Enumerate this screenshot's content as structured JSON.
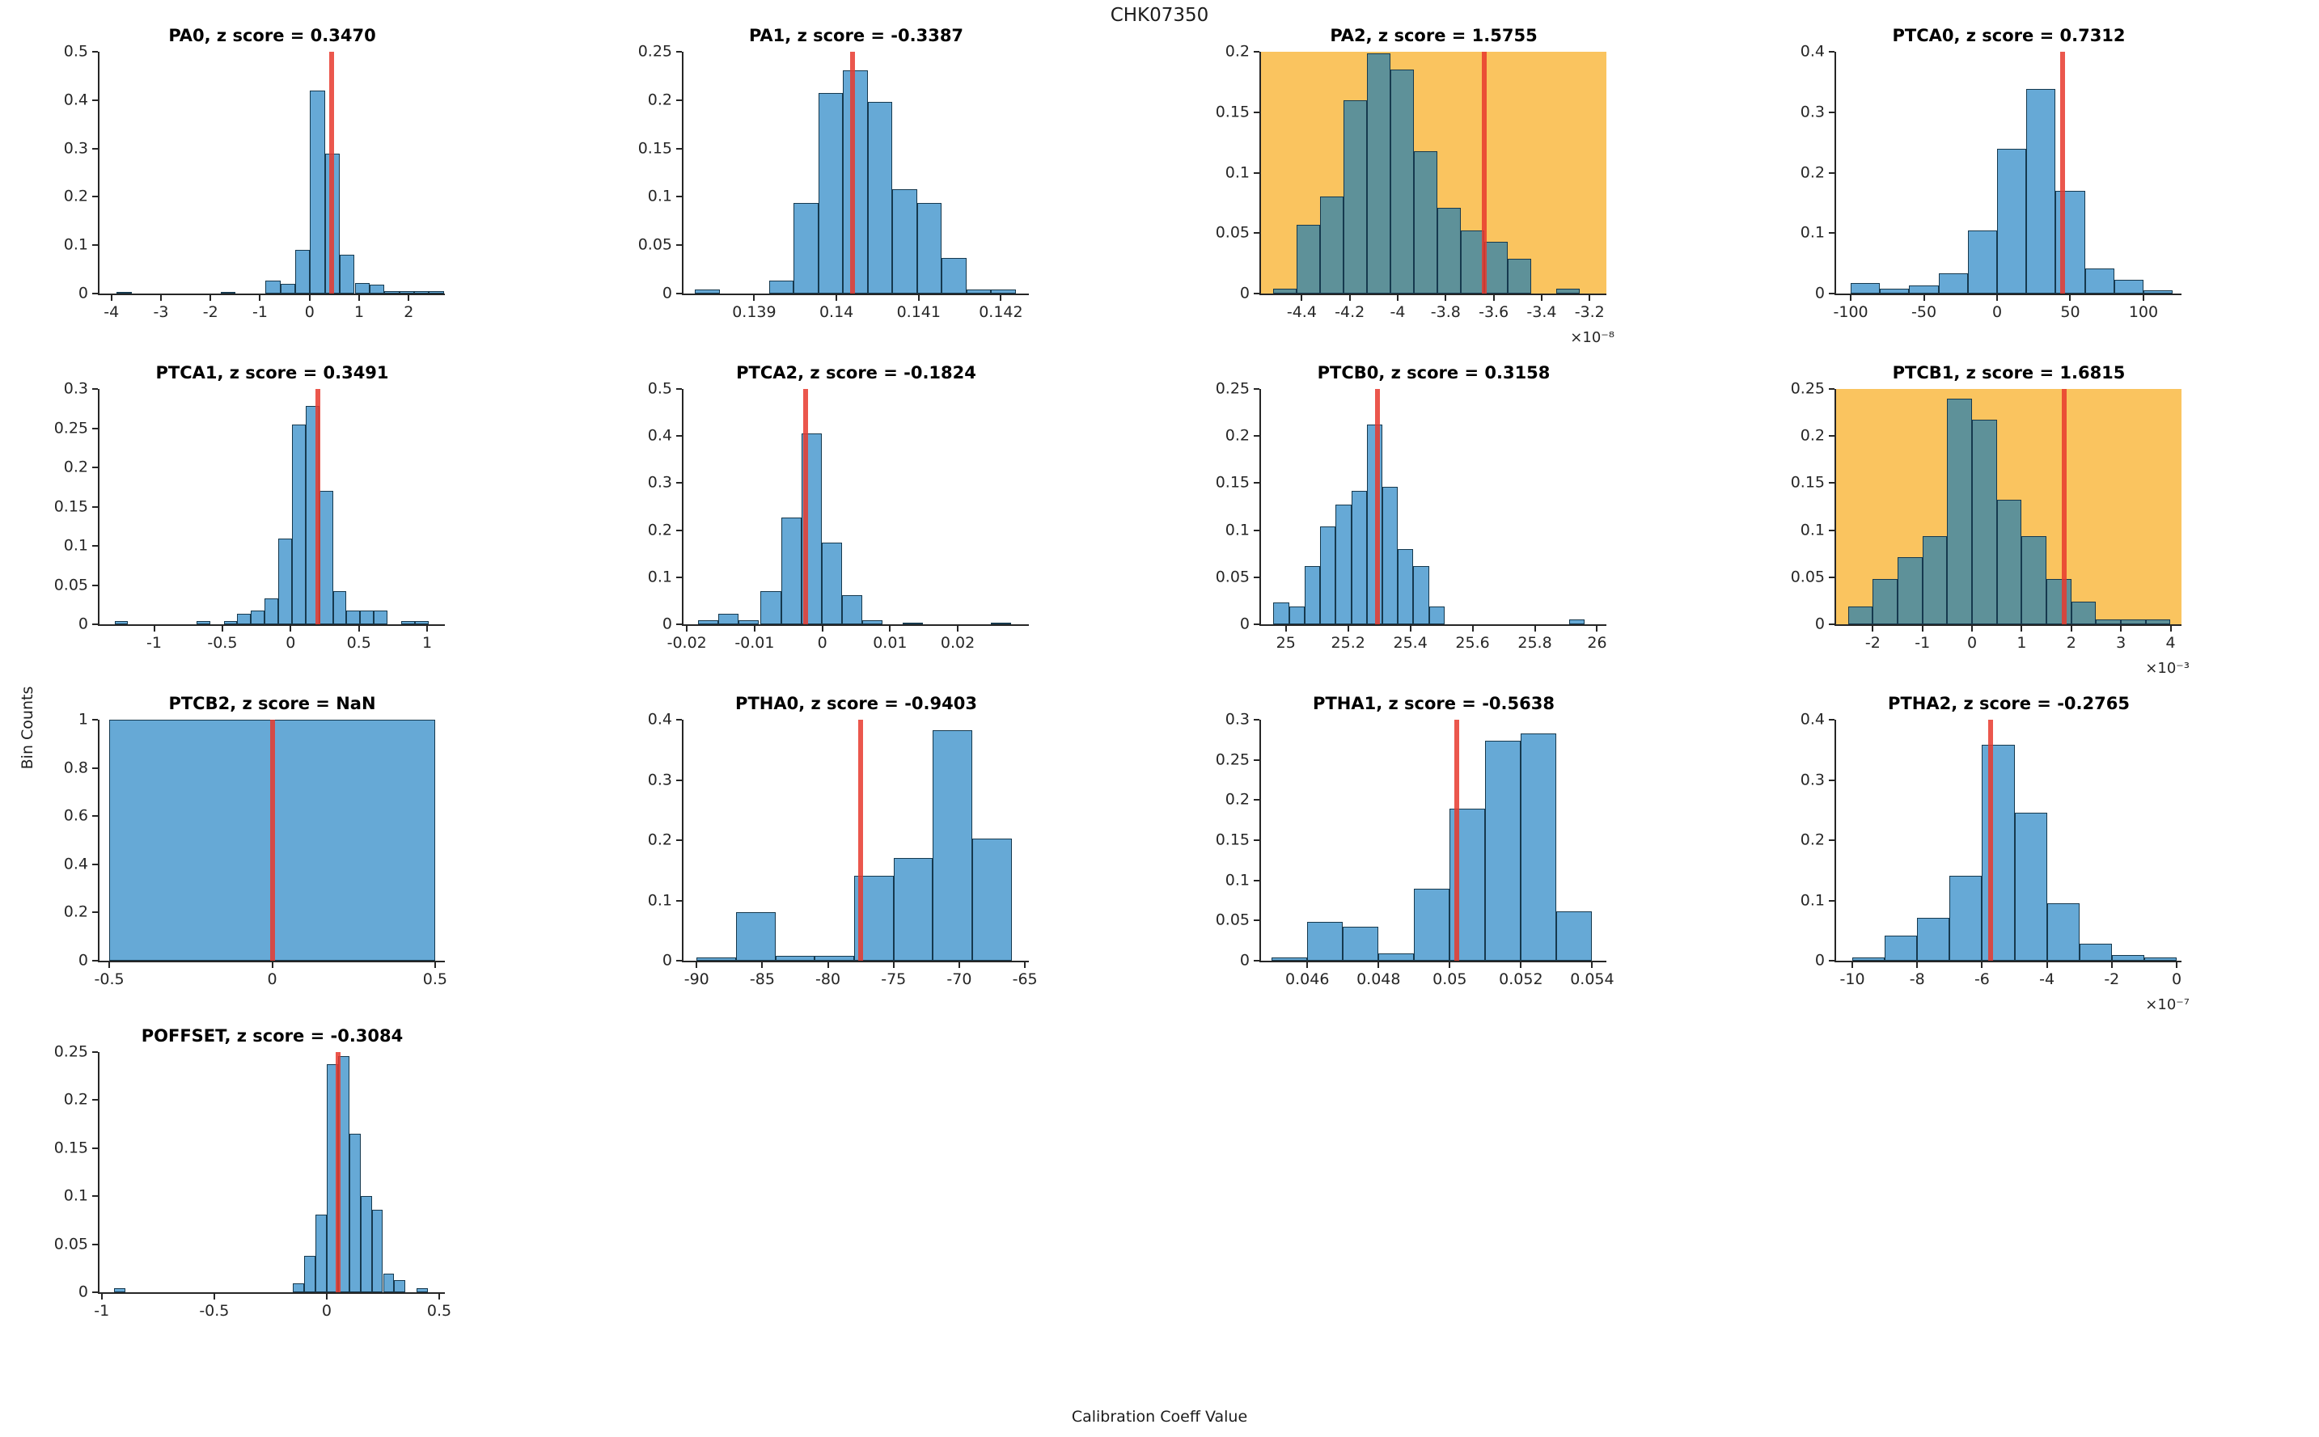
{
  "figure": {
    "title": "CHK07350",
    "xlabel": "Calibration Coeff Value",
    "ylabel": "Bin Counts"
  },
  "colors": {
    "bar_fill": "#66A9D6",
    "bar_fill_highlight": "#5E9199",
    "bar_edge": "#16394E",
    "highlight_bg": "#FAC45F",
    "red_line": "#E8392E",
    "axis": "#262626"
  },
  "chart_data": [
    {
      "type": "bar",
      "name": "PA0",
      "z_score": "0.3470",
      "title": "PA0, z score = 0.3470",
      "row": 0,
      "col": 0,
      "highlighted": false,
      "xlim": [
        -4.24,
        2.73
      ],
      "ylim": [
        0,
        0.5
      ],
      "xticks": [
        "-4",
        "-3",
        "-2",
        "-1",
        "0",
        "1",
        "2"
      ],
      "yticks": [
        "0",
        "0.1",
        "0.2",
        "0.3",
        "0.4",
        "0.5"
      ],
      "bin_width": 0.3,
      "x_offset_label": "",
      "bars": [
        [
          -3.89,
          0.004
        ],
        [
          -1.79,
          0.004
        ],
        [
          -0.89,
          0.027
        ],
        [
          -0.59,
          0.02
        ],
        [
          -0.29,
          0.09
        ],
        [
          0.01,
          0.42
        ],
        [
          0.31,
          0.29
        ],
        [
          0.61,
          0.08
        ],
        [
          0.91,
          0.022
        ],
        [
          1.21,
          0.018
        ],
        [
          1.51,
          0.005
        ],
        [
          1.81,
          0.005
        ],
        [
          2.11,
          0.005
        ],
        [
          2.41,
          0.005
        ]
      ],
      "red_line_x": 0.44
    },
    {
      "type": "bar",
      "name": "PA1",
      "z_score": "-0.3387",
      "title": "PA1, z score = -0.3387",
      "row": 0,
      "col": 1,
      "highlighted": false,
      "xlim": [
        0.13814,
        0.14234
      ],
      "ylim": [
        0,
        0.25
      ],
      "xticks": [
        "0.139",
        "0.14",
        "0.141",
        "0.142"
      ],
      "yticks": [
        "0",
        "0.05",
        "0.1",
        "0.15",
        "0.2",
        "0.25"
      ],
      "bin_width": 0.0003,
      "x_offset_label": "",
      "bars": [
        [
          0.13828,
          0.004
        ],
        [
          0.13918,
          0.013
        ],
        [
          0.13948,
          0.094
        ],
        [
          0.13978,
          0.207
        ],
        [
          0.14008,
          0.231
        ],
        [
          0.14038,
          0.198
        ],
        [
          0.14068,
          0.108
        ],
        [
          0.14098,
          0.094
        ],
        [
          0.14128,
          0.037
        ],
        [
          0.14158,
          0.004
        ],
        [
          0.14188,
          0.004
        ]
      ],
      "red_line_x": 0.1402
    },
    {
      "type": "bar",
      "name": "PA2",
      "z_score": "1.5755",
      "title": "PA2, z score = 1.5755",
      "row": 0,
      "col": 2,
      "highlighted": true,
      "xlim": [
        -4.57,
        -3.13
      ],
      "ylim": [
        0,
        0.2
      ],
      "xticks": [
        "-4.4",
        "-4.2",
        "-4",
        "-3.8",
        "-3.6",
        "-3.4",
        "-3.2"
      ],
      "yticks": [
        "0",
        "0.05",
        "0.1",
        "0.15",
        "0.2"
      ],
      "bin_width": 0.098,
      "x_offset_label": "×10⁻⁸",
      "bars": [
        [
          -4.52,
          0.004
        ],
        [
          -4.422,
          0.057
        ],
        [
          -4.324,
          0.08
        ],
        [
          -4.226,
          0.16
        ],
        [
          -4.128,
          0.199
        ],
        [
          -4.03,
          0.185
        ],
        [
          -3.932,
          0.118
        ],
        [
          -3.834,
          0.071
        ],
        [
          -3.736,
          0.052
        ],
        [
          -3.638,
          0.043
        ],
        [
          -3.54,
          0.029
        ],
        [
          -3.34,
          0.004
        ]
      ],
      "red_line_x": -3.64
    },
    {
      "type": "bar",
      "name": "PTCA0",
      "z_score": "0.7312",
      "title": "PTCA0, z score = 0.7312",
      "row": 0,
      "col": 3,
      "highlighted": false,
      "xlim": [
        -110,
        126
      ],
      "ylim": [
        0,
        0.4
      ],
      "xticks": [
        "-100",
        "-50",
        "0",
        "50",
        "100"
      ],
      "yticks": [
        "0",
        "0.1",
        "0.2",
        "0.3",
        "0.4"
      ],
      "bin_width": 20,
      "x_offset_label": "",
      "bars": [
        [
          -100,
          0.018
        ],
        [
          -80,
          0.008
        ],
        [
          -60,
          0.013
        ],
        [
          -40,
          0.033
        ],
        [
          -20,
          0.104
        ],
        [
          0,
          0.24
        ],
        [
          20,
          0.339
        ],
        [
          40,
          0.17
        ],
        [
          60,
          0.042
        ],
        [
          80,
          0.023
        ],
        [
          100,
          0.005
        ]
      ],
      "red_line_x": 45
    },
    {
      "type": "bar",
      "name": "PTCA1",
      "z_score": "0.3491",
      "title": "PTCA1, z score = 0.3491",
      "row": 1,
      "col": 0,
      "highlighted": false,
      "xlim": [
        -1.4,
        1.13
      ],
      "ylim": [
        0,
        0.3
      ],
      "xticks": [
        "-1",
        "-0.5",
        "0",
        "0.5",
        "1"
      ],
      "yticks": [
        "0",
        "0.05",
        "0.1",
        "0.15",
        "0.2",
        "0.25",
        "0.3"
      ],
      "bin_width": 0.1,
      "x_offset_label": "",
      "bars": [
        [
          -1.29,
          0.004
        ],
        [
          -0.69,
          0.004
        ],
        [
          -0.49,
          0.004
        ],
        [
          -0.39,
          0.013
        ],
        [
          -0.29,
          0.018
        ],
        [
          -0.19,
          0.033
        ],
        [
          -0.09,
          0.109
        ],
        [
          0.01,
          0.255
        ],
        [
          0.11,
          0.278
        ],
        [
          0.21,
          0.17
        ],
        [
          0.31,
          0.042
        ],
        [
          0.41,
          0.018
        ],
        [
          0.51,
          0.018
        ],
        [
          0.61,
          0.018
        ],
        [
          0.81,
          0.004
        ],
        [
          0.91,
          0.004
        ]
      ],
      "red_line_x": 0.2
    },
    {
      "type": "bar",
      "name": "PTCA2",
      "z_score": "-0.1824",
      "title": "PTCA2, z score = -0.1824",
      "row": 1,
      "col": 1,
      "highlighted": false,
      "xlim": [
        -0.0205,
        0.0305
      ],
      "ylim": [
        0,
        0.5
      ],
      "xticks": [
        "-0.02",
        "-0.01",
        "0",
        "0.01",
        "0.02"
      ],
      "yticks": [
        "0",
        "0.1",
        "0.2",
        "0.3",
        "0.4",
        "0.5"
      ],
      "bin_width": 0.003,
      "x_offset_label": "",
      "bars": [
        [
          -0.0184,
          0.008
        ],
        [
          -0.0154,
          0.022
        ],
        [
          -0.0124,
          0.008
        ],
        [
          -0.0091,
          0.07
        ],
        [
          -0.0061,
          0.227
        ],
        [
          -0.0031,
          0.405
        ],
        [
          -0.0001,
          0.174
        ],
        [
          0.0029,
          0.062
        ],
        [
          0.0059,
          0.008
        ],
        [
          0.0119,
          0.004
        ],
        [
          0.0249,
          0.004
        ]
      ],
      "red_line_x": -0.0025
    },
    {
      "type": "bar",
      "name": "PTCB0",
      "z_score": "0.3158",
      "title": "PTCB0, z score = 0.3158",
      "row": 1,
      "col": 2,
      "highlighted": false,
      "xlim": [
        24.92,
        26.03
      ],
      "ylim": [
        0,
        0.25
      ],
      "xticks": [
        "25",
        "25.2",
        "25.4",
        "25.6",
        "25.8",
        "26"
      ],
      "yticks": [
        "0",
        "0.05",
        "0.1",
        "0.15",
        "0.2",
        "0.25"
      ],
      "bin_width": 0.05,
      "x_offset_label": "",
      "bars": [
        [
          24.96,
          0.023
        ],
        [
          25.01,
          0.019
        ],
        [
          25.06,
          0.062
        ],
        [
          25.11,
          0.104
        ],
        [
          25.16,
          0.127
        ],
        [
          25.21,
          0.142
        ],
        [
          25.26,
          0.212
        ],
        [
          25.31,
          0.146
        ],
        [
          25.36,
          0.08
        ],
        [
          25.41,
          0.062
        ],
        [
          25.46,
          0.019
        ],
        [
          25.91,
          0.005
        ]
      ],
      "red_line_x": 25.295
    },
    {
      "type": "bar",
      "name": "PTCB1",
      "z_score": "1.6815",
      "title": "PTCB1, z score = 1.6815",
      "row": 1,
      "col": 3,
      "highlighted": true,
      "xlim": [
        -2.74,
        4.22
      ],
      "ylim": [
        0,
        0.25
      ],
      "xticks": [
        "-2",
        "-1",
        "0",
        "1",
        "2",
        "3",
        "4"
      ],
      "yticks": [
        "0",
        "0.05",
        "0.1",
        "0.15",
        "0.2",
        "0.25"
      ],
      "bin_width": 0.5,
      "x_offset_label": "×10⁻³",
      "bars": [
        [
          -2.5,
          0.019
        ],
        [
          -2,
          0.048
        ],
        [
          -1.5,
          0.071
        ],
        [
          -1,
          0.094
        ],
        [
          -0.5,
          0.24
        ],
        [
          0,
          0.217
        ],
        [
          0.5,
          0.132
        ],
        [
          1,
          0.094
        ],
        [
          1.5,
          0.048
        ],
        [
          2,
          0.024
        ],
        [
          2.5,
          0.005
        ],
        [
          3,
          0.005
        ],
        [
          3.5,
          0.005
        ]
      ],
      "red_line_x": 1.85
    },
    {
      "type": "bar",
      "name": "PTCB2",
      "z_score": "NaN",
      "title": "PTCB2, z score = NaN",
      "row": 2,
      "col": 0,
      "highlighted": false,
      "xlim": [
        -0.53,
        0.53
      ],
      "ylim": [
        0,
        1
      ],
      "xticks": [
        "-0.5",
        "0",
        "0.5"
      ],
      "yticks": [
        "0",
        "0.2",
        "0.4",
        "0.6",
        "0.8",
        "1"
      ],
      "bin_width": 1.0,
      "x_offset_label": "",
      "bars": [
        [
          -0.5,
          1.0
        ]
      ],
      "red_line_x": 0.002
    },
    {
      "type": "bar",
      "name": "PTHA0",
      "z_score": "-0.9403",
      "title": "PTHA0, z score = -0.9403",
      "row": 2,
      "col": 1,
      "highlighted": false,
      "xlim": [
        -91,
        -64.7
      ],
      "ylim": [
        0,
        0.4
      ],
      "xticks": [
        "-90",
        "-85",
        "-80",
        "-75",
        "-70",
        "-65"
      ],
      "yticks": [
        "0",
        "0.1",
        "0.2",
        "0.3",
        "0.4"
      ],
      "bin_width": 3,
      "x_offset_label": "",
      "bars": [
        [
          -90,
          0.005
        ],
        [
          -87,
          0.081
        ],
        [
          -84,
          0.008
        ],
        [
          -81,
          0.008
        ],
        [
          -78,
          0.141
        ],
        [
          -75,
          0.17
        ],
        [
          -72,
          0.383
        ],
        [
          -69,
          0.203
        ]
      ],
      "red_line_x": -77.5
    },
    {
      "type": "bar",
      "name": "PTHA1",
      "z_score": "-0.5638",
      "title": "PTHA1, z score = -0.5638",
      "row": 2,
      "col": 2,
      "highlighted": false,
      "xlim": [
        0.0447,
        0.0544
      ],
      "ylim": [
        0,
        0.3
      ],
      "xticks": [
        "0.046",
        "0.048",
        "0.05",
        "0.052",
        "0.054"
      ],
      "yticks": [
        "0",
        "0.05",
        "0.1",
        "0.15",
        "0.2",
        "0.25",
        "0.3"
      ],
      "bin_width": 0.001,
      "x_offset_label": "",
      "bars": [
        [
          0.045,
          0.004
        ],
        [
          0.046,
          0.048
        ],
        [
          0.047,
          0.042
        ],
        [
          0.048,
          0.009
        ],
        [
          0.049,
          0.09
        ],
        [
          0.05,
          0.189
        ],
        [
          0.051,
          0.274
        ],
        [
          0.052,
          0.283
        ],
        [
          0.053,
          0.061
        ]
      ],
      "red_line_x": 0.0502
    },
    {
      "type": "bar",
      "name": "PTHA2",
      "z_score": "-0.2765",
      "title": "PTHA2, z score = -0.2765",
      "row": 2,
      "col": 3,
      "highlighted": false,
      "xlim": [
        -10.5,
        0.15
      ],
      "ylim": [
        0,
        0.4
      ],
      "xticks": [
        "-10",
        "-8",
        "-6",
        "-4",
        "-2",
        "0"
      ],
      "yticks": [
        "0",
        "0.1",
        "0.2",
        "0.3",
        "0.4"
      ],
      "bin_width": 1,
      "x_offset_label": "×10⁻⁷",
      "bars": [
        [
          -10,
          0.005
        ],
        [
          -9,
          0.042
        ],
        [
          -8,
          0.071
        ],
        [
          -7,
          0.141
        ],
        [
          -6,
          0.359
        ],
        [
          -5,
          0.245
        ],
        [
          -4,
          0.095
        ],
        [
          -3,
          0.028
        ],
        [
          -2,
          0.009
        ],
        [
          -1,
          0.005
        ]
      ],
      "red_line_x": -5.73
    },
    {
      "type": "bar",
      "name": "POFFSET",
      "z_score": "-0.3084",
      "title": "POFFSET, z score = -0.3084",
      "row": 3,
      "col": 0,
      "highlighted": false,
      "xlim": [
        -1.01,
        0.525
      ],
      "ylim": [
        0,
        0.25
      ],
      "xticks": [
        "-1",
        "-0.5",
        "0",
        "0.5"
      ],
      "yticks": [
        "0",
        "0.05",
        "0.1",
        "0.15",
        "0.2",
        "0.25"
      ],
      "bin_width": 0.05,
      "x_offset_label": "",
      "bars": [
        [
          -0.945,
          0.004
        ],
        [
          -0.15,
          0.009
        ],
        [
          -0.1,
          0.038
        ],
        [
          -0.05,
          0.081
        ],
        [
          0,
          0.237
        ],
        [
          0.05,
          0.246
        ],
        [
          0.1,
          0.165
        ],
        [
          0.15,
          0.1
        ],
        [
          0.2,
          0.086
        ],
        [
          0.25,
          0.019
        ],
        [
          0.3,
          0.013
        ],
        [
          0.4,
          0.004
        ]
      ],
      "red_line_x": 0.052
    }
  ]
}
